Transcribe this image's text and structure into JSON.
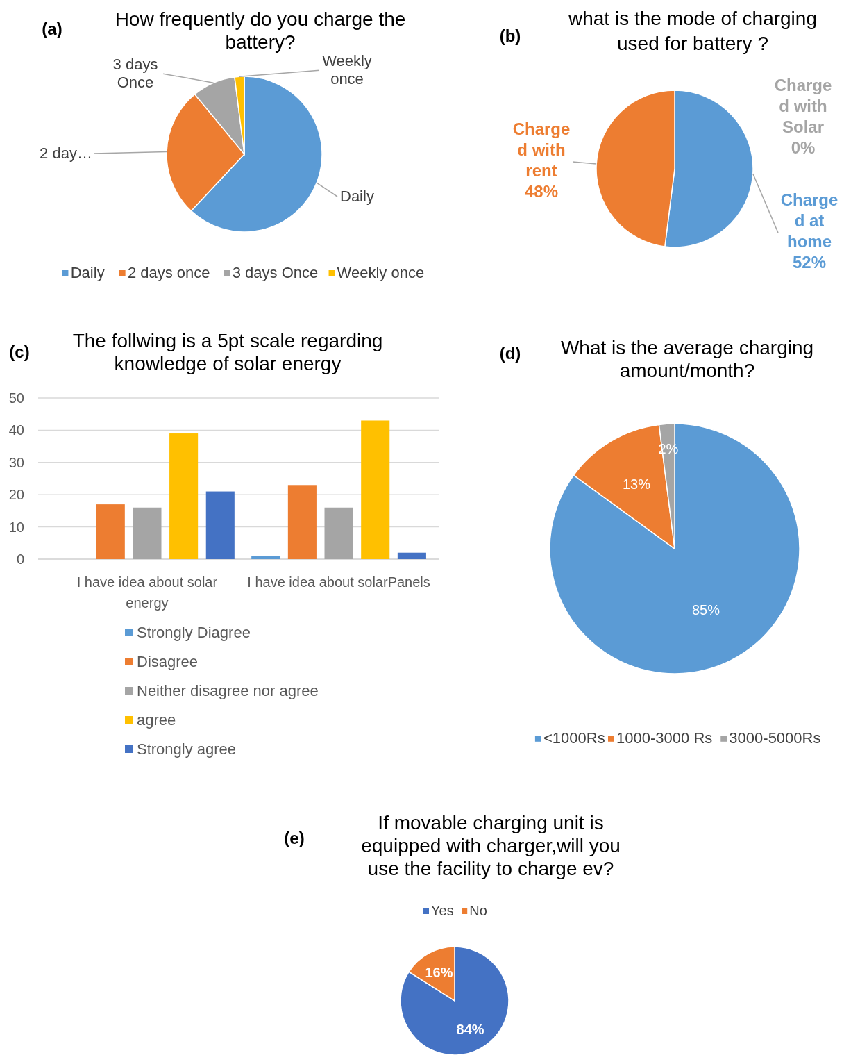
{
  "chart_data": [
    {
      "type": "pie",
      "title": "How frequently do you charge the battery?",
      "annotations": [
        "(a)",
        "Daily",
        "2 day…",
        "3 days Once",
        "Weekly once"
      ],
      "categories": [
        "Daily",
        "2 days once",
        "3 days Once",
        "Weekly once"
      ],
      "values": [
        62,
        27,
        9,
        2
      ],
      "colors": [
        "#5b9bd5",
        "#ed7d31",
        "#a5a5a5",
        "#ffc000"
      ],
      "legend": "bottom"
    },
    {
      "type": "pie",
      "title": "what is the mode of charging used for battery ?",
      "annotations": [
        "(b)"
      ],
      "categories": [
        "Charge d at home",
        "Charge d with rent",
        "Charge d with Solar"
      ],
      "values": [
        52,
        48,
        0
      ],
      "colors": [
        "#5b9bd5",
        "#ed7d31",
        "#a5a5a5"
      ],
      "value_labels": [
        "52%",
        "48%",
        "0%"
      ]
    },
    {
      "type": "bar",
      "title": "The follwing is a 5pt scale regarding knowledge of solar energy",
      "annotations": [
        "(c)"
      ],
      "categories": [
        "I have idea about solar energy",
        "I have idea about solarPanels"
      ],
      "ylim": [
        0,
        50
      ],
      "yticks": [
        0,
        10,
        20,
        30,
        40,
        50
      ],
      "grid": "y",
      "legend": "bottom",
      "series": [
        {
          "name": "Strongly Diagree",
          "color": "#5b9bd5",
          "values": [
            0,
            1
          ]
        },
        {
          "name": "Disagree",
          "color": "#ed7d31",
          "values": [
            17,
            23
          ]
        },
        {
          "name": "Neither disagree nor agree",
          "color": "#a5a5a5",
          "values": [
            16,
            16
          ]
        },
        {
          "name": "agree",
          "color": "#ffc000",
          "values": [
            39,
            43
          ]
        },
        {
          "name": "Strongly agree",
          "color": "#4472c4",
          "values": [
            21,
            2
          ]
        }
      ]
    },
    {
      "type": "pie",
      "title": "What is the average charging amount/month?",
      "annotations": [
        "(d)"
      ],
      "categories": [
        "<1000Rs",
        "1000-3000 Rs",
        "3000-5000Rs"
      ],
      "values": [
        85,
        13,
        2
      ],
      "colors": [
        "#5b9bd5",
        "#ed7d31",
        "#a5a5a5"
      ],
      "value_labels": [
        "85%",
        "13%",
        "2%"
      ],
      "legend": "bottom"
    },
    {
      "type": "pie",
      "title": "If movable charging unit is equipped with charger,will you use the facility to charge ev?",
      "annotations": [
        "(e)"
      ],
      "categories": [
        "Yes",
        "No"
      ],
      "values": [
        84,
        16
      ],
      "colors": [
        "#4472c4",
        "#ed7d31"
      ],
      "value_labels": [
        "84%",
        "16%"
      ],
      "legend": "top"
    }
  ]
}
